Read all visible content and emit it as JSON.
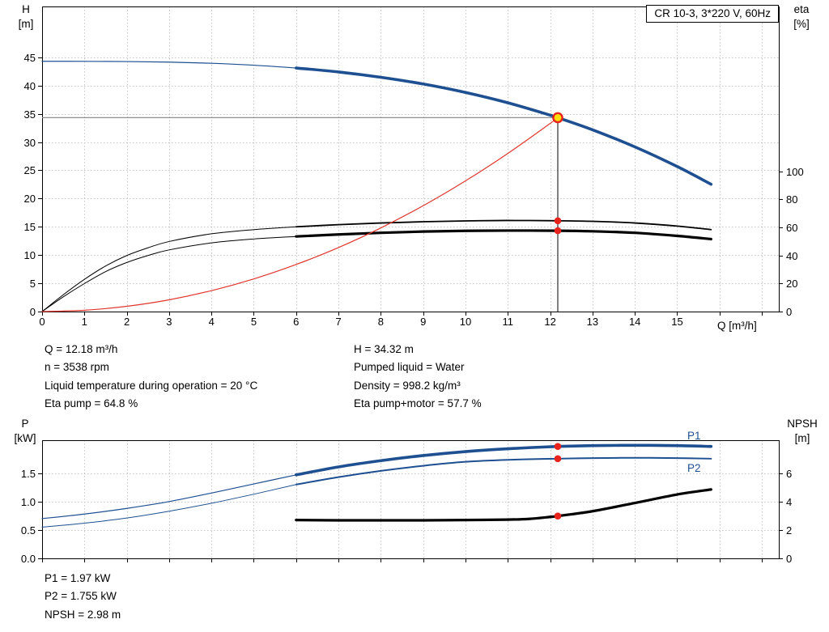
{
  "header": {
    "title": "CR 10-3, 3*220 V, 60Hz"
  },
  "summary": {
    "col1": [
      "Q = 12.18 m³/h",
      "n = 3538 rpm",
      "Liquid temperature during operation = 20 °C",
      "Eta pump = 64.8 %"
    ],
    "col2": [
      "H = 34.32 m",
      "Pumped liquid = Water",
      "Density = 998.2 kg/m³",
      "Eta pump+motor = 57.7 %"
    ]
  },
  "results": [
    "P1 = 1.97 kW",
    "P2 = 1.755 kW",
    "NPSH = 2.98 m"
  ],
  "colors": {
    "curve_blue": "#1d4f91",
    "curve_black": "#000000",
    "curve_red": "#e0372e",
    "dot_red": "#e8231c",
    "marker_yellow": "#ffdf00",
    "guide_gray": "#909090",
    "grid_gray": "#c6c6c6"
  },
  "chart_data": [
    {
      "id": "hq-eta-chart",
      "type": "line",
      "title": "",
      "x_axis": {
        "label": "Q [m³/h]",
        "min": 0,
        "max": 17.4,
        "grid_to": 17,
        "tick_values": [
          0,
          1,
          2,
          3,
          4,
          5,
          6,
          7,
          8,
          9,
          10,
          11,
          12,
          13,
          14,
          15
        ],
        "tick_labels": [
          "0",
          "1",
          "2",
          "3",
          "4",
          "5",
          "6",
          "7",
          "8",
          "9",
          "10",
          "11",
          "12",
          "13",
          "14",
          "15"
        ]
      },
      "left_axis": {
        "name": "H",
        "unit": "[m]",
        "min": 0,
        "max_drawn": 54,
        "tick_values": [
          0,
          5,
          10,
          15,
          20,
          25,
          30,
          35,
          40,
          45
        ],
        "tick_labels": [
          "0",
          "5",
          "10",
          "15",
          "20",
          "25",
          "30",
          "35",
          "40",
          "45"
        ]
      },
      "right_axis": {
        "name": "eta",
        "unit": "[%]",
        "left_units_per_unit": 0.248,
        "tick_values": [
          0,
          20,
          40,
          60,
          80,
          100
        ],
        "tick_labels": [
          "0",
          "20",
          "40",
          "60",
          "80",
          "100"
        ]
      },
      "series": [
        {
          "name": "Pump curve Q-H",
          "data_name": "hq-curve",
          "axis": "left",
          "color": "#1d4f91",
          "split_q": 6,
          "thin_width": 1.2,
          "width": 3.6,
          "q": [
            0,
            1,
            2,
            3,
            4,
            5,
            6,
            7,
            8,
            9,
            10,
            11,
            12,
            12.18,
            13,
            14,
            15,
            15.8
          ],
          "v": [
            44.3,
            44.29,
            44.25,
            44.15,
            43.95,
            43.61,
            43.11,
            42.41,
            41.47,
            40.28,
            38.78,
            36.95,
            34.76,
            34.32,
            32.17,
            29.15,
            25.67,
            22.53
          ]
        },
        {
          "name": "Eta pump",
          "data_name": "eta-pump-curve",
          "axis": "right",
          "color": "#000000",
          "split_q": 6,
          "thin_width": 1,
          "width": 1.8,
          "q": [
            0,
            0.5,
            1,
            1.5,
            2,
            2.5,
            3,
            4,
            5,
            6,
            7,
            8,
            9,
            10,
            11,
            12.18,
            13,
            14,
            15,
            15.8
          ],
          "v": [
            0,
            12,
            23,
            32.5,
            40,
            45.5,
            50,
            55.5,
            58.5,
            60.5,
            62,
            63.2,
            64.1,
            64.7,
            65,
            64.8,
            64.4,
            63.2,
            61,
            58.5
          ]
        },
        {
          "name": "Eta pump+motor",
          "data_name": "eta-pump-motor-curve",
          "axis": "right",
          "color": "#000000",
          "split_q": 6,
          "thin_width": 1,
          "width": 3.2,
          "q": [
            0,
            0.5,
            1,
            1.5,
            2,
            2.5,
            3,
            4,
            5,
            6,
            7,
            8,
            9,
            10,
            11,
            12.18,
            13,
            14,
            15,
            15.8
          ],
          "v": [
            0,
            10.5,
            20,
            28.5,
            35,
            40,
            44,
            49,
            51.8,
            53.6,
            55,
            56.2,
            57.1,
            57.6,
            57.8,
            57.7,
            57.3,
            56.2,
            54,
            51.7
          ]
        },
        {
          "name": "System curve",
          "data_name": "system-curve",
          "axis": "left",
          "color": "#e0372e",
          "split_q": null,
          "thin_width": 1.2,
          "width": 1.2,
          "q": [
            0,
            1,
            2,
            3,
            4,
            5,
            6,
            7,
            8,
            9,
            10,
            11,
            12,
            12.18
          ],
          "v": [
            0,
            0.23,
            0.93,
            2.08,
            3.7,
            5.78,
            8.33,
            11.33,
            14.8,
            18.73,
            23.13,
            27.99,
            33.3,
            34.32
          ]
        }
      ],
      "annotations": {
        "h_guide": {
          "from_q": 0,
          "to_q": 12.18,
          "h": 34.32,
          "color": "#909090"
        },
        "v_guide": {
          "q": 12.18,
          "from_h": 0,
          "to_h": 34.32,
          "color": "#000000"
        },
        "op_marker": {
          "q": 12.18,
          "h": 34.32,
          "fill": "#ffdf00",
          "stroke": "#e8231c"
        },
        "dot_color": "#e8231c",
        "dots": [
          {
            "q": 12.18,
            "value": 64.8,
            "axis": "right"
          },
          {
            "q": 12.18,
            "value": 57.7,
            "axis": "right"
          }
        ]
      }
    },
    {
      "id": "power-npsh-chart",
      "type": "line",
      "title": "",
      "x_axis": {
        "label": "",
        "min": 0,
        "max": 17.4,
        "grid_to": 17,
        "tick_values": [],
        "tick_labels": []
      },
      "left_axis": {
        "name": "P",
        "unit": "[kW]",
        "min": 0,
        "max_drawn": 2.08,
        "tick_values": [
          0,
          0.5,
          1,
          1.5
        ],
        "tick_labels": [
          "0.0",
          "0.5",
          "1.0",
          "1.5"
        ]
      },
      "right_axis": {
        "name": "NPSH",
        "unit": "[m]",
        "left_units_per_unit": 0.25,
        "tick_values": [
          0,
          2,
          4,
          6
        ],
        "tick_labels": [
          "0",
          "2",
          "4",
          "6"
        ]
      },
      "series": [
        {
          "name": "P1",
          "data_name": "p1-curve",
          "axis": "left",
          "color": "#1d4f91",
          "split_q": 6,
          "thin_width": 1.2,
          "width": 3.6,
          "q": [
            0,
            1,
            2,
            3,
            4,
            5,
            6,
            7,
            8,
            9,
            10,
            11,
            12.18,
            13,
            14,
            15,
            15.8
          ],
          "v": [
            0.7,
            0.78,
            0.88,
            1.0,
            1.15,
            1.31,
            1.47,
            1.61,
            1.72,
            1.81,
            1.88,
            1.93,
            1.97,
            1.985,
            1.99,
            1.985,
            1.97
          ]
        },
        {
          "name": "P2",
          "data_name": "p2-curve",
          "axis": "left",
          "color": "#1d4f91",
          "split_q": 6,
          "thin_width": 1,
          "width": 2,
          "q": [
            0,
            1,
            2,
            3,
            4,
            5,
            6,
            7,
            8,
            9,
            10,
            11,
            12.18,
            13,
            14,
            15,
            15.8
          ],
          "v": [
            0.55,
            0.62,
            0.71,
            0.83,
            0.97,
            1.13,
            1.3,
            1.43,
            1.54,
            1.63,
            1.7,
            1.735,
            1.755,
            1.765,
            1.77,
            1.765,
            1.755
          ]
        },
        {
          "name": "NPSH",
          "data_name": "npsh-curve",
          "axis": "right",
          "color": "#000000",
          "split_q": null,
          "thin_width": 3.2,
          "width": 3.2,
          "q": [
            6,
            7,
            8,
            9,
            10,
            11,
            11.5,
            12,
            12.18,
            13,
            14,
            15,
            15.8
          ],
          "v": [
            2.7,
            2.68,
            2.68,
            2.68,
            2.7,
            2.73,
            2.78,
            2.92,
            2.98,
            3.32,
            3.9,
            4.5,
            4.85
          ]
        }
      ],
      "annotations": {
        "dot_color": "#e8231c",
        "dots": [
          {
            "q": 12.18,
            "value": 1.97,
            "axis": "left"
          },
          {
            "q": 12.18,
            "value": 1.755,
            "axis": "left"
          },
          {
            "q": 12.18,
            "value": 2.98,
            "axis": "right"
          }
        ]
      }
    }
  ]
}
